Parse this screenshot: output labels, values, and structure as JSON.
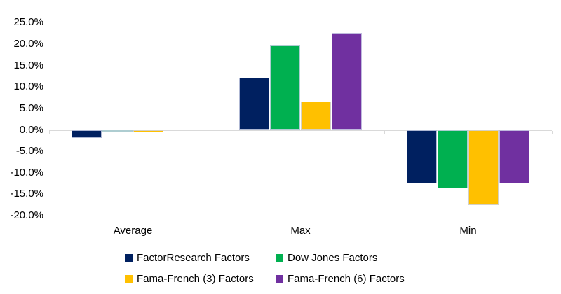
{
  "chart_data": {
    "type": "bar",
    "title": "",
    "xlabel": "",
    "ylabel": "",
    "categories": [
      "Average",
      "Max",
      "Min"
    ],
    "series": [
      {
        "name": "FactorResearch Factors",
        "color": "#002060",
        "values": [
          -1.9,
          12.1,
          -12.5
        ]
      },
      {
        "name": "Dow Jones Factors",
        "color": "#00B050",
        "values": [
          -0.2,
          19.7,
          -13.6
        ]
      },
      {
        "name": "Fama-French (3) Factors",
        "color": "#FFC000",
        "values": [
          -0.6,
          6.6,
          -17.5
        ]
      },
      {
        "name": "Fama-French (6) Factors",
        "color": "#7030A0",
        "values": [
          0.0,
          22.6,
          -12.5
        ]
      }
    ],
    "yticks": [
      {
        "value": 25,
        "label": "25.0%"
      },
      {
        "value": 20,
        "label": "20.0%"
      },
      {
        "value": 15,
        "label": "15.0%"
      },
      {
        "value": 10,
        "label": "10.0%"
      },
      {
        "value": 5,
        "label": "5.0%"
      },
      {
        "value": 0,
        "label": "0.0%"
      },
      {
        "value": -5,
        "label": "-5.0%"
      },
      {
        "value": -10,
        "label": "-10.0%"
      },
      {
        "value": -15,
        "label": "-15.0%"
      },
      {
        "value": -20,
        "label": "-20.0%"
      }
    ],
    "ylim": [
      -20,
      25
    ],
    "grid": "off",
    "axis_line_color": "#d9d9d9",
    "legend_position": "bottom",
    "legend_rows": [
      [
        "FactorResearch Factors",
        "Dow Jones Factors"
      ],
      [
        "Fama-French (3) Factors",
        "Fama-French (6) Factors"
      ]
    ]
  }
}
